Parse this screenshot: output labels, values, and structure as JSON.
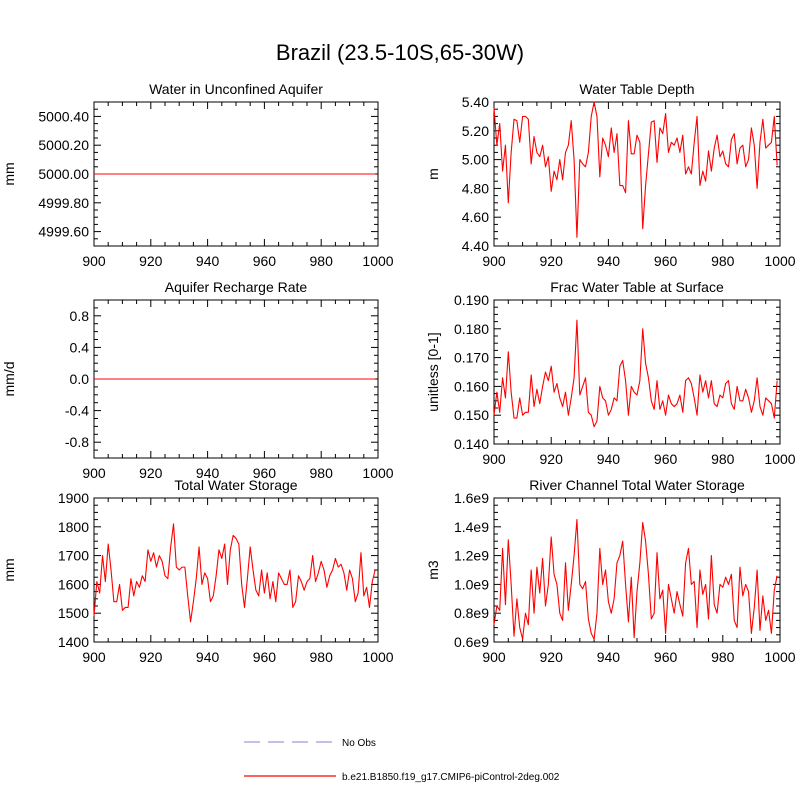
{
  "figure": {
    "title": "Brazil (23.5-10S,65-30W)",
    "line_color": "#ff0000",
    "obs_color": "#9999dd",
    "legend": [
      {
        "label": "No Obs",
        "style": "dashed"
      },
      {
        "label": "b.e21.B1850.f19_g17.CMIP6-piControl-2deg.002",
        "style": "solid"
      }
    ]
  },
  "chart_data": [
    {
      "type": "line",
      "title": "Water in Unconfined Aquifer",
      "xlabel": "",
      "ylabel": "mm",
      "xlim": [
        900,
        1000
      ],
      "ylim": [
        4999.5,
        5000.5
      ],
      "x_ticks": [
        900,
        920,
        940,
        960,
        980,
        1000
      ],
      "y_ticks": [
        4999.6,
        4999.8,
        5000.0,
        5000.2,
        5000.4
      ],
      "y_tick_labels": [
        "4999.60",
        "4999.80",
        "5000.00",
        "5000.20",
        "5000.40"
      ],
      "y_minor_step": 0.05,
      "series": [
        {
          "name": "b.e21.B1850.f19_g17.CMIP6-piControl-2deg.002",
          "x_start": 900,
          "x_step": 1,
          "values": [
            5000.0,
            5000.0,
            5000.0,
            5000.0,
            5000.0,
            5000.0,
            5000.0,
            5000.0,
            5000.0,
            5000.0,
            5000.0,
            5000.0,
            5000.0,
            5000.0,
            5000.0,
            5000.0,
            5000.0,
            5000.0,
            5000.0,
            5000.0,
            5000.0,
            5000.0,
            5000.0,
            5000.0,
            5000.0,
            5000.0,
            5000.0,
            5000.0,
            5000.0,
            5000.0,
            5000.0,
            5000.0,
            5000.0,
            5000.0,
            5000.0,
            5000.0,
            5000.0,
            5000.0,
            5000.0,
            5000.0,
            5000.0,
            5000.0,
            5000.0,
            5000.0,
            5000.0,
            5000.0,
            5000.0,
            5000.0,
            5000.0,
            5000.0,
            5000.0,
            5000.0,
            5000.0,
            5000.0,
            5000.0,
            5000.0,
            5000.0,
            5000.0,
            5000.0,
            5000.0,
            5000.0,
            5000.0,
            5000.0,
            5000.0,
            5000.0,
            5000.0,
            5000.0,
            5000.0,
            5000.0,
            5000.0,
            5000.0,
            5000.0,
            5000.0,
            5000.0,
            5000.0,
            5000.0,
            5000.0,
            5000.0,
            5000.0,
            5000.0,
            5000.0,
            5000.0,
            5000.0,
            5000.0,
            5000.0,
            5000.0,
            5000.0,
            5000.0,
            5000.0,
            5000.0,
            5000.0,
            5000.0,
            5000.0,
            5000.0,
            5000.0,
            5000.0,
            5000.0,
            5000.0,
            5000.0,
            5000.0
          ]
        }
      ]
    },
    {
      "type": "line",
      "title": "Water Table Depth",
      "xlabel": "",
      "ylabel": "m",
      "xlim": [
        900,
        1000
      ],
      "ylim": [
        4.4,
        5.4
      ],
      "x_ticks": [
        900,
        920,
        940,
        960,
        980,
        1000
      ],
      "y_ticks": [
        4.4,
        4.6,
        4.8,
        5.0,
        5.2,
        5.4
      ],
      "y_tick_labels": [
        "4.40",
        "4.60",
        "4.80",
        "5.00",
        "5.20",
        "5.40"
      ],
      "y_minor_step": 0.05,
      "series": [
        {
          "name": "b.e21.B1850.f19_g17.CMIP6-piControl-2deg.002",
          "x_start": 900,
          "x_step": 1,
          "values": [
            5.36,
            5.1,
            5.25,
            4.92,
            5.1,
            4.7,
            5.05,
            5.28,
            5.27,
            5.12,
            5.3,
            5.3,
            5.28,
            4.97,
            5.16,
            5.05,
            5.02,
            5.1,
            4.95,
            5.02,
            4.78,
            4.92,
            4.86,
            5.0,
            4.86,
            5.05,
            5.1,
            5.27,
            5.0,
            4.46,
            5.0,
            4.97,
            4.95,
            5.05,
            5.3,
            5.4,
            5.3,
            4.88,
            5.15,
            5.1,
            5.02,
            5.22,
            5.05,
            5.18,
            4.82,
            4.82,
            4.77,
            5.27,
            5.04,
            5.04,
            5.17,
            5.12,
            4.52,
            4.82,
            5.04,
            5.26,
            5.27,
            4.98,
            5.22,
            5.18,
            5.32,
            5.05,
            5.12,
            5.1,
            5.15,
            5.05,
            5.17,
            4.9,
            4.95,
            4.9,
            5.12,
            5.3,
            4.82,
            4.92,
            4.85,
            5.06,
            4.92,
            5.08,
            5.17,
            5.02,
            5.06,
            4.97,
            4.95,
            5.14,
            5.18,
            4.97,
            5.08,
            5.1,
            4.95,
            5.0,
            5.22,
            5.1,
            4.8,
            5.12,
            5.28,
            5.08,
            5.1,
            5.12,
            5.3,
            4.96
          ]
        }
      ]
    },
    {
      "type": "line",
      "title": "Aquifer Recharge Rate",
      "xlabel": "",
      "ylabel": "mm/d",
      "xlim": [
        900,
        1000
      ],
      "ylim": [
        -1.0,
        1.0
      ],
      "x_ticks": [
        900,
        920,
        940,
        960,
        980,
        1000
      ],
      "y_ticks": [
        -0.8,
        -0.4,
        0.0,
        0.4,
        0.8
      ],
      "y_tick_labels": [
        "-0.8",
        "-0.4",
        "0.0",
        "0.4",
        "0.8"
      ],
      "y_minor_step": 0.1,
      "series": [
        {
          "name": "b.e21.B1850.f19_g17.CMIP6-piControl-2deg.002",
          "x_start": 900,
          "x_step": 1,
          "values": [
            0.0,
            0.0,
            0.0,
            0.0,
            0.0,
            0.0,
            0.0,
            0.0,
            0.0,
            0.0,
            0.0,
            0.0,
            0.0,
            0.0,
            0.0,
            0.0,
            0.0,
            0.0,
            0.0,
            0.0,
            0.0,
            0.0,
            0.0,
            0.0,
            0.0,
            0.0,
            0.0,
            0.0,
            0.0,
            0.0,
            0.0,
            0.0,
            0.0,
            0.0,
            0.0,
            0.0,
            0.0,
            0.0,
            0.0,
            0.0,
            0.0,
            0.0,
            0.0,
            0.0,
            0.0,
            0.0,
            0.0,
            0.0,
            0.0,
            0.0,
            0.0,
            0.0,
            0.0,
            0.0,
            0.0,
            0.0,
            0.0,
            0.0,
            0.0,
            0.0,
            0.0,
            0.0,
            0.0,
            0.0,
            0.0,
            0.0,
            0.0,
            0.0,
            0.0,
            0.0,
            0.0,
            0.0,
            0.0,
            0.0,
            0.0,
            0.0,
            0.0,
            0.0,
            0.0,
            0.0,
            0.0,
            0.0,
            0.0,
            0.0,
            0.0,
            0.0,
            0.0,
            0.0,
            0.0,
            0.0,
            0.0,
            0.0,
            0.0,
            0.0,
            0.0,
            0.0,
            0.0,
            0.0,
            0.0,
            0.0
          ]
        }
      ]
    },
    {
      "type": "line",
      "title": "Frac Water Table at Surface",
      "xlabel": "",
      "ylabel": "unitless [0-1]",
      "xlim": [
        900,
        1000
      ],
      "ylim": [
        0.14,
        0.19
      ],
      "x_ticks": [
        900,
        920,
        940,
        960,
        980,
        1000
      ],
      "y_ticks": [
        0.14,
        0.15,
        0.16,
        0.17,
        0.18,
        0.19
      ],
      "y_tick_labels": [
        "0.140",
        "0.150",
        "0.160",
        "0.170",
        "0.180",
        "0.190"
      ],
      "y_minor_step": 0.0025,
      "series": [
        {
          "name": "b.e21.B1850.f19_g17.CMIP6-piControl-2deg.002",
          "x_start": 900,
          "x_step": 1,
          "values": [
            0.15,
            0.158,
            0.151,
            0.163,
            0.156,
            0.172,
            0.158,
            0.149,
            0.149,
            0.156,
            0.15,
            0.151,
            0.151,
            0.164,
            0.153,
            0.159,
            0.154,
            0.16,
            0.165,
            0.162,
            0.167,
            0.158,
            0.161,
            0.156,
            0.153,
            0.158,
            0.15,
            0.156,
            0.163,
            0.183,
            0.157,
            0.16,
            0.163,
            0.151,
            0.15,
            0.146,
            0.148,
            0.16,
            0.156,
            0.155,
            0.15,
            0.152,
            0.156,
            0.155,
            0.167,
            0.169,
            0.162,
            0.15,
            0.16,
            0.158,
            0.157,
            0.162,
            0.18,
            0.168,
            0.163,
            0.155,
            0.152,
            0.162,
            0.152,
            0.155,
            0.15,
            0.157,
            0.154,
            0.153,
            0.154,
            0.157,
            0.151,
            0.162,
            0.163,
            0.161,
            0.156,
            0.15,
            0.164,
            0.158,
            0.162,
            0.156,
            0.162,
            0.154,
            0.153,
            0.157,
            0.156,
            0.161,
            0.162,
            0.154,
            0.152,
            0.16,
            0.155,
            0.155,
            0.159,
            0.156,
            0.151,
            0.155,
            0.163,
            0.153,
            0.15,
            0.156,
            0.155,
            0.154,
            0.149,
            0.162
          ]
        }
      ]
    },
    {
      "type": "line",
      "title": "Total Water Storage",
      "xlabel": "",
      "ylabel": "mm",
      "xlim": [
        900,
        1000
      ],
      "ylim": [
        1400,
        1900
      ],
      "x_ticks": [
        900,
        920,
        940,
        960,
        980,
        1000
      ],
      "y_ticks": [
        1400,
        1500,
        1600,
        1700,
        1800,
        1900
      ],
      "y_tick_labels": [
        "1400",
        "1500",
        "1600",
        "1700",
        "1800",
        "1900"
      ],
      "y_minor_step": 25,
      "series": [
        {
          "name": "b.e21.B1850.f19_g17.CMIP6-piControl-2deg.002",
          "x_start": 900,
          "x_step": 1,
          "values": [
            1490,
            1610,
            1570,
            1700,
            1610,
            1740,
            1650,
            1540,
            1540,
            1600,
            1510,
            1520,
            1520,
            1620,
            1560,
            1610,
            1590,
            1630,
            1610,
            1720,
            1680,
            1710,
            1660,
            1700,
            1680,
            1630,
            1620,
            1730,
            1810,
            1660,
            1650,
            1660,
            1660,
            1560,
            1470,
            1540,
            1620,
            1730,
            1600,
            1640,
            1620,
            1540,
            1560,
            1630,
            1720,
            1690,
            1740,
            1600,
            1720,
            1770,
            1760,
            1740,
            1600,
            1520,
            1620,
            1730,
            1650,
            1580,
            1560,
            1650,
            1570,
            1640,
            1550,
            1610,
            1540,
            1640,
            1620,
            1600,
            1600,
            1650,
            1520,
            1540,
            1630,
            1610,
            1580,
            1610,
            1620,
            1700,
            1610,
            1640,
            1680,
            1650,
            1590,
            1630,
            1650,
            1690,
            1660,
            1670,
            1640,
            1580,
            1650,
            1620,
            1540,
            1570,
            1710,
            1560,
            1590,
            1520,
            1610,
            1650
          ]
        }
      ]
    },
    {
      "type": "line",
      "title": "River Channel Total Water Storage",
      "xlabel": "",
      "ylabel": "m3",
      "xlim": [
        900,
        1000
      ],
      "ylim": [
        600000000.0,
        1600000000.0
      ],
      "x_ticks": [
        900,
        920,
        940,
        960,
        980,
        1000
      ],
      "y_ticks": [
        600000000.0,
        800000000.0,
        1000000000.0,
        1200000000.0,
        1400000000.0,
        1600000000.0
      ],
      "y_tick_labels": [
        "0.6e9",
        "0.8e9",
        "1.0e9",
        "1.2e9",
        "1.4e9",
        "1.6e9"
      ],
      "y_minor_step": 50000000.0,
      "series": [
        {
          "name": "b.e21.B1850.f19_g17.CMIP6-piControl-2deg.002",
          "x_start": 900,
          "x_step": 1,
          "values": [
            720000000.0,
            850000000.0,
            820000000.0,
            1250000000.0,
            860000000.0,
            1310000000.0,
            1000000000.0,
            640000000.0,
            900000000.0,
            700000000.0,
            620000000.0,
            800000000.0,
            720000000.0,
            1100000000.0,
            800000000.0,
            1120000000.0,
            940000000.0,
            1180000000.0,
            850000000.0,
            1000000000.0,
            1330000000.0,
            1070000000.0,
            1000000000.0,
            800000000.0,
            750000000.0,
            1150000000.0,
            820000000.0,
            1000000000.0,
            1200000000.0,
            1450000000.0,
            1000000000.0,
            970000000.0,
            1020000000.0,
            760000000.0,
            660000000.0,
            620000000.0,
            800000000.0,
            1250000000.0,
            1000000000.0,
            1100000000.0,
            880000000.0,
            800000000.0,
            900000000.0,
            1150000000.0,
            1200000000.0,
            1300000000.0,
            1000000000.0,
            740000000.0,
            1050000000.0,
            630000000.0,
            950000000.0,
            1150000000.0,
            1430000000.0,
            1300000000.0,
            1070000000.0,
            760000000.0,
            800000000.0,
            1220000000.0,
            900000000.0,
            960000000.0,
            660000000.0,
            1000000000.0,
            900000000.0,
            800000000.0,
            950000000.0,
            860000000.0,
            780000000.0,
            1150000000.0,
            1250000000.0,
            1000000000.0,
            1020000000.0,
            700000000.0,
            1100000000.0,
            930000000.0,
            1000000000.0,
            760000000.0,
            1200000000.0,
            860000000.0,
            800000000.0,
            1000000000.0,
            980000000.0,
            1050000000.0,
            1000000000.0,
            1070000000.0,
            750000000.0,
            700000000.0,
            1120000000.0,
            920000000.0,
            1000000000.0,
            950000000.0,
            660000000.0,
            840000000.0,
            1100000000.0,
            680000000.0,
            920000000.0,
            750000000.0,
            820000000.0,
            660000000.0,
            960000000.0,
            1060000000.0
          ]
        }
      ]
    }
  ]
}
